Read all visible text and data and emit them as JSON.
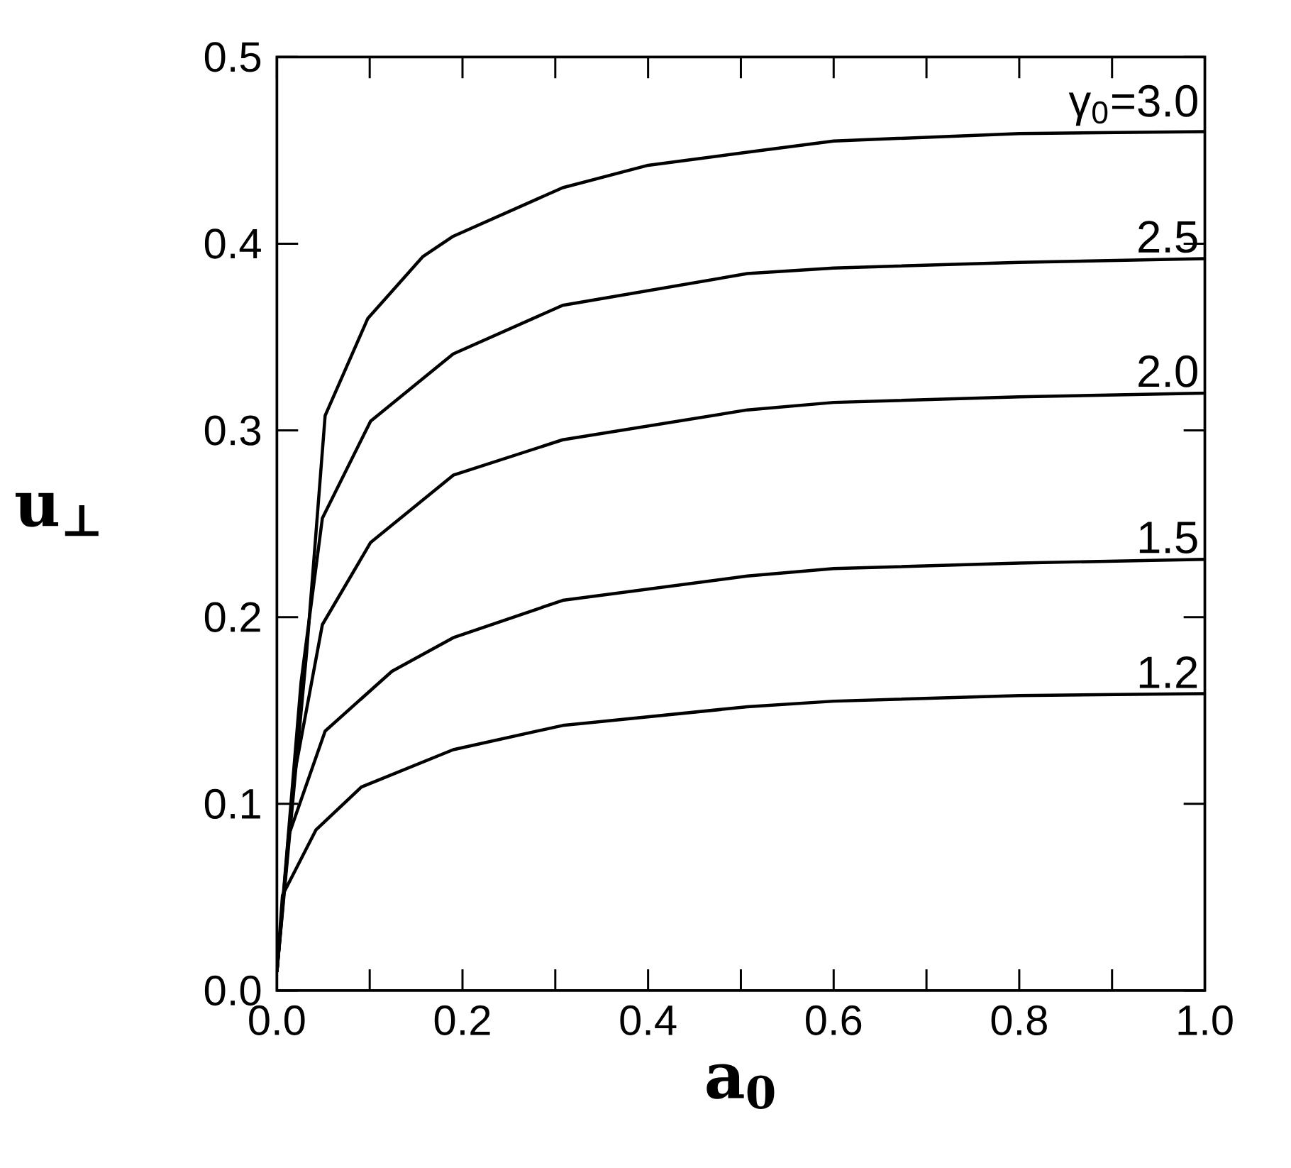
{
  "chart_data": {
    "type": "line",
    "xlabel": "a$_{0}$",
    "ylabel": "u$_{⊥}$",
    "xlim": [
      0,
      1
    ],
    "ylim": [
      0,
      0.5
    ],
    "xticks": [
      {
        "value": 0,
        "label": "0.0"
      },
      {
        "value": 0.1,
        "label": null
      },
      0.2,
      {
        "value": 0.3,
        "label": null
      },
      0.4,
      {
        "value": 0.5,
        "label": null
      },
      0.6,
      {
        "value": 0.7,
        "label": null
      },
      0.8,
      {
        "value": 0.9,
        "label": null
      },
      {
        "value": 1,
        "label": "1.0"
      }
    ],
    "yticks": [
      {
        "value": 0,
        "label": "0.0"
      },
      0.1,
      0.2,
      0.3,
      0.4,
      0.5
    ],
    "legend": "right",
    "grid": false,
    "marker": "none",
    "line_style": "solid",
    "series": [
      {
        "name": "γ$_{0}$=3.0",
        "color": "#000000",
        "x": [
          0,
          0.032,
          0.052,
          0.098,
          0.157,
          0.19,
          0.308,
          0.4,
          0.507,
          0.6,
          0.8,
          1.0
        ],
        "values": [
          0.01,
          0.181,
          0.308,
          0.36,
          0.393,
          0.404,
          0.43,
          0.442,
          0.449,
          0.455,
          0.459,
          0.46
        ]
      },
      {
        "name": "2.5",
        "color": "#000000",
        "x": [
          0,
          0.026,
          0.049,
          0.101,
          0.19,
          0.308,
          0.507,
          0.6,
          0.8,
          1.0
        ],
        "values": [
          0.01,
          0.165,
          0.253,
          0.305,
          0.341,
          0.367,
          0.384,
          0.387,
          0.39,
          0.392
        ]
      },
      {
        "name": "2.0",
        "color": "#000000",
        "x": [
          0,
          0.019,
          0.049,
          0.101,
          0.19,
          0.308,
          0.507,
          0.6,
          0.8,
          1.0
        ],
        "values": [
          0.01,
          0.116,
          0.196,
          0.24,
          0.276,
          0.295,
          0.311,
          0.315,
          0.318,
          0.32
        ]
      },
      {
        "name": "1.5",
        "color": "#000000",
        "x": [
          0,
          0.0126,
          0.052,
          0.124,
          0.19,
          0.308,
          0.507,
          0.6,
          0.8,
          1.0
        ],
        "values": [
          0.01,
          0.083,
          0.139,
          0.171,
          0.189,
          0.209,
          0.222,
          0.226,
          0.229,
          0.231
        ]
      },
      {
        "name": "1.2",
        "color": "#000000",
        "x": [
          0,
          0.006,
          0.042,
          0.091,
          0.19,
          0.308,
          0.507,
          0.6,
          0.8,
          1.0
        ],
        "values": [
          0.01,
          0.051,
          0.086,
          0.109,
          0.129,
          0.142,
          0.152,
          0.155,
          0.158,
          0.159
        ]
      }
    ]
  }
}
